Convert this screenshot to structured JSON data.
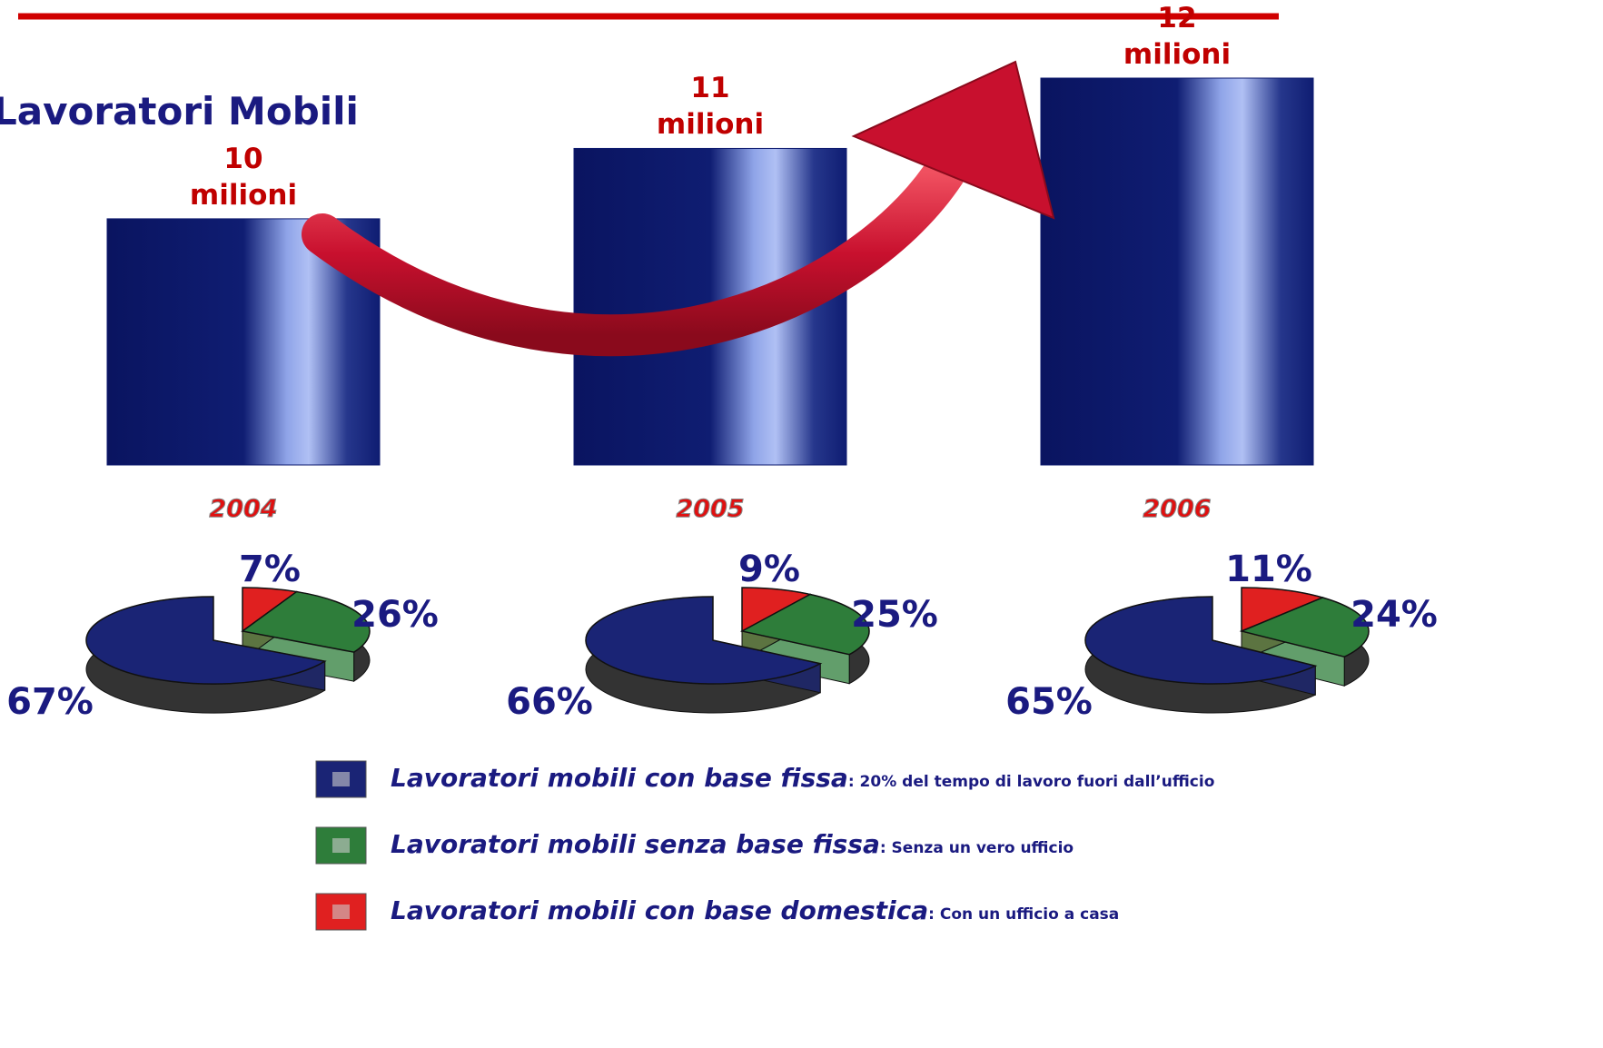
{
  "title": "Lavoratori Mobili",
  "chart_data": [
    {
      "type": "bar",
      "categories": [
        "2004",
        "2005",
        "2006"
      ],
      "values": [
        10,
        11,
        12
      ],
      "value_labels": [
        "10 milioni",
        "11 milioni",
        "12 milioni"
      ],
      "color": "#0d1a6e",
      "ylim": [
        6.5,
        12
      ]
    },
    {
      "type": "pie",
      "values": [
        67,
        26,
        7
      ],
      "value_labels": [
        "67%",
        "26%",
        "7%"
      ]
    },
    {
      "type": "pie",
      "values": [
        66,
        25,
        9
      ],
      "value_labels": [
        "66%",
        "25%",
        "9%"
      ]
    },
    {
      "type": "pie",
      "values": [
        65,
        24,
        11
      ],
      "value_labels": [
        "65%",
        "24%",
        "11%"
      ]
    }
  ],
  "legend": {
    "items": [
      {
        "name": "Lavoratori mobili con base fissa",
        "description": ": 20% del tempo di lavoro fuori dall’ufficio",
        "color": "#1a2475"
      },
      {
        "name": "Lavoratori mobili senza base fissa",
        "description": ": Senza un vero ufficio",
        "color": "#2e7d3a"
      },
      {
        "name": "Lavoratori mobili con base domestica",
        "description": ": Con un ufficio a casa",
        "color": "#e02020"
      }
    ]
  }
}
